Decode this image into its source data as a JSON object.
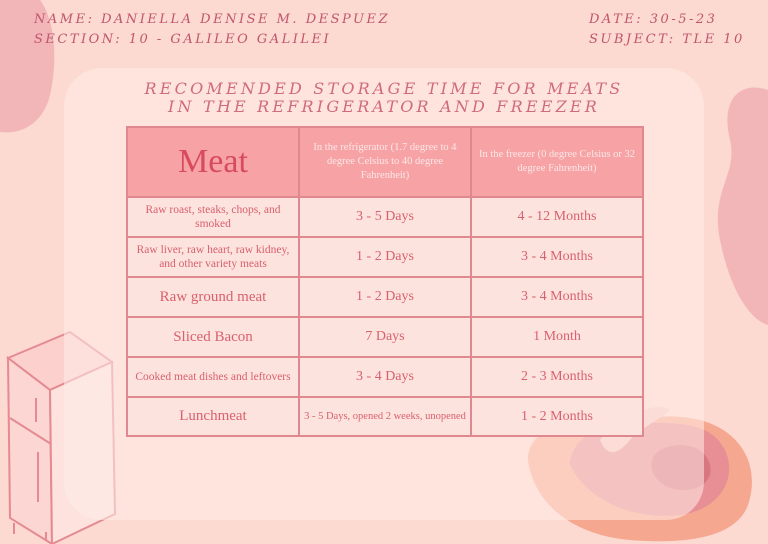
{
  "header": {
    "name": "NAME: DANIELLA DENISE M. DESPUEZ",
    "section": "SECTION: 10 - GALILEO GALILEI",
    "date": "DATE: 30-5-23",
    "subject": "SUBJECT: TLE 10"
  },
  "title": {
    "line1": "RECOMENDED STORAGE TIME FOR MEATS",
    "line2": "IN THE REFRIGERATOR AND FREEZER"
  },
  "table": {
    "headers": {
      "meat": "Meat",
      "refrigerator": "In the refrigerator (1.7 degree to 4 degree Celsius to 40 degree Fahrenheit)",
      "freezer": "In the freezer (0 degree Celsius or 32 degree Fahrenheit)"
    },
    "rows": [
      {
        "meat": "Raw roast, steaks, chops, and smoked",
        "refrigerator": "3 - 5 Days",
        "freezer": "4 - 12 Months"
      },
      {
        "meat": "Raw liver, raw heart, raw kidney, and other variety meats",
        "refrigerator": "1 - 2 Days",
        "freezer": "3 - 4 Months"
      },
      {
        "meat": "Raw ground meat",
        "refrigerator": "1 - 2 Days",
        "freezer": "3 - 4 Months"
      },
      {
        "meat": "Sliced Bacon",
        "refrigerator": "7 Days",
        "freezer": "1 Month"
      },
      {
        "meat": "Cooked meat dishes and leftovers",
        "refrigerator": "3 - 4 Days",
        "freezer": "2 - 3 Months"
      },
      {
        "meat": "Lunchmeat",
        "refrigerator": "3 - 5 Days, opened 2 weeks, unopened",
        "freezer": "1 - 2 Months"
      }
    ]
  },
  "colors": {
    "background": "#fcd9d1",
    "accent": "#d8616e",
    "header_fill": "#f7a3a6",
    "border": "#e0888f"
  }
}
